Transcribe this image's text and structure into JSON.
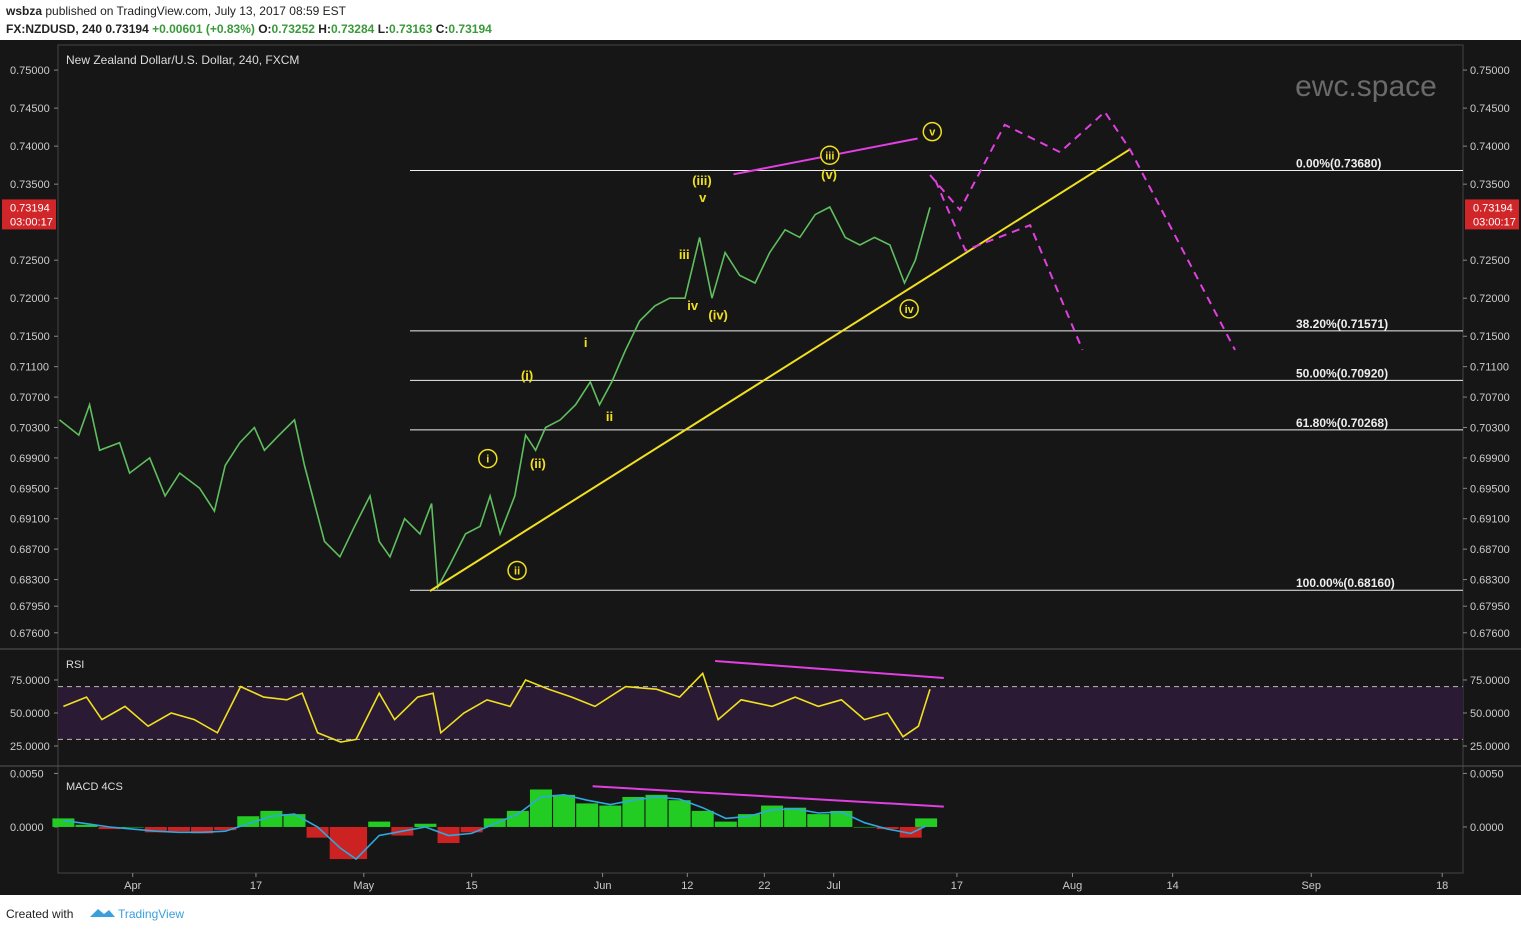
{
  "header": {
    "author": "wsbza",
    "published": "published on TradingView.com, July 13, 2017 08:59 EST",
    "symbol": "FX:NZDUSD, 240",
    "quote": "0.73194",
    "change": "+0.00601 (+0.83%)",
    "ohlc": [
      {
        "key": "O:",
        "value": "0.73252"
      },
      {
        "key": "H:",
        "value": "0.73284"
      },
      {
        "key": "L:",
        "value": "0.73163"
      },
      {
        "key": "C:",
        "value": "0.73194"
      }
    ]
  },
  "watermark": "ewc.space",
  "price_tag": {
    "price": "0.73194",
    "countdown": "03:00:17"
  },
  "footer": {
    "created": "Created with",
    "brand": "TradingView"
  },
  "chart_data": [
    {
      "type": "line",
      "title": "New Zealand Dollar/U.S. Dollar, 240, FXCM",
      "xlim": [
        81.3,
        263.7
      ],
      "ylim": [
        0.674,
        0.7533
      ],
      "yticks": [
        {
          "value": 0.75,
          "label": "0.75000"
        },
        {
          "value": 0.745,
          "label": "0.74500"
        },
        {
          "value": 0.74,
          "label": "0.74000"
        },
        {
          "value": 0.735,
          "label": "0.73500"
        },
        {
          "value": 0.725,
          "label": "0.72500"
        },
        {
          "value": 0.72,
          "label": "0.72000"
        },
        {
          "value": 0.715,
          "label": "0.71500"
        },
        {
          "value": 0.711,
          "label": "0.71100"
        },
        {
          "value": 0.707,
          "label": "0.70700"
        },
        {
          "value": 0.703,
          "label": "0.70300"
        },
        {
          "value": 0.699,
          "label": "0.69900"
        },
        {
          "value": 0.695,
          "label": "0.69500"
        },
        {
          "value": 0.691,
          "label": "0.69100"
        },
        {
          "value": 0.687,
          "label": "0.68700"
        },
        {
          "value": 0.683,
          "label": "0.68300"
        },
        {
          "value": 0.6795,
          "label": "0.67950"
        },
        {
          "value": 0.676,
          "label": "0.67600"
        }
      ],
      "x": [
        81.5,
        84,
        85.4,
        86.7,
        89.3,
        90.6,
        93.2,
        95.2,
        97.1,
        99.7,
        101.6,
        103,
        104.9,
        106.8,
        108.1,
        110,
        112,
        113.3,
        114.6,
        115.9,
        117.9,
        119.8,
        121.8,
        123,
        124.4,
        126.3,
        128.3,
        129.8,
        130.6,
        132.2,
        134.2,
        136.1,
        137.4,
        138.7,
        140.6,
        142,
        143.3,
        144.6,
        146.5,
        148.5,
        150.4,
        151.6,
        153.2,
        154.9,
        156.8,
        158.8,
        160.7,
        162.7,
        164.6,
        166.2,
        167.9,
        169.8,
        171.8,
        173.7,
        175.7,
        177.6,
        179.6,
        181.5,
        183.5,
        185.4,
        187.3,
        189.3,
        191.2,
        192.6,
        194.5
      ],
      "series": [
        {
          "color": "#5fbf5f",
          "values": [
            0.704,
            0.702,
            0.706,
            0.7,
            0.701,
            0.697,
            0.699,
            0.694,
            0.697,
            0.695,
            0.692,
            0.698,
            0.701,
            0.703,
            0.7,
            0.702,
            0.704,
            0.698,
            0.693,
            0.688,
            0.686,
            0.69,
            0.694,
            0.688,
            0.686,
            0.691,
            0.689,
            0.693,
            0.682,
            0.685,
            0.689,
            0.69,
            0.694,
            0.689,
            0.694,
            0.702,
            0.7,
            0.703,
            0.704,
            0.706,
            0.709,
            0.706,
            0.709,
            0.713,
            0.717,
            0.719,
            0.72,
            0.72,
            0.728,
            0.72,
            0.726,
            0.723,
            0.722,
            0.726,
            0.729,
            0.728,
            0.731,
            0.732,
            0.728,
            0.727,
            0.728,
            0.727,
            0.722,
            0.725,
            0.73194
          ]
        }
      ],
      "fib_start": 127,
      "fib_levels": [
        {
          "label": "0.00%(0.73680)",
          "value": 0.7368
        },
        {
          "label": "38.20%(0.71571)",
          "value": 0.71571
        },
        {
          "label": "50.00%(0.70920)",
          "value": 0.7092
        },
        {
          "label": "61.80%(0.70268)",
          "value": 0.70268
        },
        {
          "label": "100.00%(0.68160)",
          "value": 0.6816
        }
      ],
      "lines": [
        {
          "color": "#f0e020",
          "dashed": false,
          "points": [
            [
              129.6,
              0.6815
            ],
            [
              220.5,
              0.7396
            ]
          ]
        },
        {
          "color": "#e040e0",
          "dashed": false,
          "points": [
            [
              169,
              0.7363
            ],
            [
              192.9,
              0.741
            ]
          ]
        },
        {
          "color": "#e040e0",
          "dashed": true,
          "points": [
            [
              194.5,
              0.7362
            ],
            [
              198.4,
              0.7316
            ],
            [
              204.2,
              0.7428
            ],
            [
              211.4,
              0.7392
            ],
            [
              217.2,
              0.7445
            ],
            [
              220.5,
              0.7395
            ],
            [
              234.1,
              0.7132
            ]
          ]
        },
        {
          "color": "#e040e0",
          "dashed": true,
          "points": [
            [
              195.2,
              0.7355
            ],
            [
              199.1,
              0.7263
            ],
            [
              207.5,
              0.7296
            ],
            [
              214.3,
              0.7132
            ]
          ]
        }
      ],
      "annotations": [
        {
          "text": "(iii)",
          "x": 164.9,
          "y": 0.7354,
          "circled": false
        },
        {
          "text": "v",
          "x": 165,
          "y": 0.7332,
          "circled": false
        },
        {
          "text": "iii",
          "x": 162.6,
          "y": 0.7257,
          "circled": false
        },
        {
          "text": "iv",
          "x": 163.7,
          "y": 0.719,
          "circled": false
        },
        {
          "text": "(iv)",
          "x": 167,
          "y": 0.7177,
          "circled": false
        },
        {
          "text": "i",
          "x": 149.8,
          "y": 0.7141,
          "circled": false
        },
        {
          "text": "(i)",
          "x": 142.2,
          "y": 0.7098,
          "circled": false
        },
        {
          "text": "ii",
          "x": 152.9,
          "y": 0.7044,
          "circled": false
        },
        {
          "text": "(ii)",
          "x": 143.6,
          "y": 0.6982,
          "circled": false
        },
        {
          "text": "i",
          "x": 137.1,
          "y": 0.6989,
          "circled": true
        },
        {
          "text": "ii",
          "x": 140.9,
          "y": 0.6842,
          "circled": true
        },
        {
          "text": "iii",
          "x": 181.5,
          "y": 0.7388,
          "circled": true
        },
        {
          "text": "(v)",
          "x": 181.4,
          "y": 0.7362,
          "circled": false
        },
        {
          "text": "v",
          "x": 194.8,
          "y": 0.7419,
          "circled": true
        },
        {
          "text": "iv",
          "x": 191.8,
          "y": 0.7186,
          "circled": true
        }
      ]
    },
    {
      "type": "line",
      "title": "RSI",
      "xlim": [
        81.3,
        263.7
      ],
      "ylim": [
        10.6,
        97.7
      ],
      "bands": [
        30,
        70
      ],
      "yticks": [
        {
          "value": 75,
          "label": "75.0000"
        },
        {
          "value": 50,
          "label": "50.0000"
        },
        {
          "value": 25,
          "label": "25.0000"
        }
      ],
      "x": [
        82,
        85,
        87,
        90,
        93,
        96,
        99,
        102,
        105,
        108,
        111,
        113,
        115,
        118,
        120,
        123,
        125,
        128,
        130,
        131,
        134,
        137,
        140,
        142,
        145,
        148,
        151,
        155,
        159,
        162,
        165,
        167,
        170,
        174,
        177,
        180,
        183,
        186,
        189,
        191,
        193,
        194.5
      ],
      "series": [
        {
          "color": "#f0e020",
          "values": [
            55,
            62,
            45,
            55,
            40,
            50,
            45,
            35,
            70,
            62,
            60,
            65,
            35,
            28,
            30,
            65,
            45,
            62,
            65,
            35,
            50,
            60,
            55,
            75,
            68,
            62,
            55,
            70,
            68,
            62,
            80,
            45,
            60,
            55,
            62,
            55,
            60,
            45,
            50,
            32,
            40,
            68
          ]
        }
      ],
      "lines": [
        {
          "color": "#e040e0",
          "dashed": false,
          "points": [
            [
              166.6,
              89.4
            ],
            [
              196.3,
              76.5
            ]
          ]
        }
      ]
    },
    {
      "type": "bar",
      "title": "MACD 4CS",
      "xlim": [
        81.3,
        263.7
      ],
      "ylim": [
        -0.0043,
        0.0056
      ],
      "pos_color": "#22cc22",
      "neg_color": "#cc2222",
      "yticks": [
        {
          "value": 0.005,
          "label": "0.0050"
        },
        {
          "value": 0,
          "label": "0.0000"
        }
      ],
      "xticks": [
        {
          "value": 91,
          "label": "Apr"
        },
        {
          "value": 107,
          "label": "17"
        },
        {
          "value": 121,
          "label": "May"
        },
        {
          "value": 135,
          "label": "15"
        },
        {
          "value": 152,
          "label": "Jun"
        },
        {
          "value": 163,
          "label": "12"
        },
        {
          "value": 173,
          "label": "22"
        },
        {
          "value": 182,
          "label": "Jul"
        },
        {
          "value": 198,
          "label": "17"
        },
        {
          "value": 213,
          "label": "Aug"
        },
        {
          "value": 226,
          "label": "14"
        },
        {
          "value": 244,
          "label": "Sep"
        },
        {
          "value": 261,
          "label": "18"
        }
      ],
      "x": [
        82,
        85,
        88,
        91,
        94,
        97,
        100,
        103,
        106,
        109,
        112,
        115,
        118,
        120,
        123,
        126,
        129,
        132,
        135,
        138,
        141,
        144,
        147,
        150,
        153,
        156,
        159,
        162,
        165,
        168,
        171,
        174,
        177,
        180,
        183,
        186,
        189,
        192,
        194
      ],
      "values": [
        0.0008,
        0.0002,
        -0.0002,
        0,
        -0.0005,
        -0.0004,
        -0.0006,
        -0.0003,
        0.001,
        0.0015,
        0.0012,
        -0.001,
        -0.003,
        -0.003,
        0.0005,
        -0.0008,
        0.0003,
        -0.0015,
        -0.0005,
        0.0008,
        0.0015,
        0.0035,
        0.003,
        0.0022,
        0.002,
        0.0028,
        0.003,
        0.0025,
        0.0015,
        0.0005,
        0.0012,
        0.002,
        0.0018,
        0.0012,
        0.0015,
        0,
        -0.0002,
        -0.001,
        0.0008
      ],
      "series": [
        {
          "color": "#2ea9df",
          "values": [
            0.0006,
            0.0003,
            0,
            -0.0002,
            -0.0004,
            -0.0005,
            -0.0005,
            -0.0004,
            0.0003,
            0.001,
            0.0012,
            0,
            -0.002,
            -0.003,
            -0.0008,
            -0.0004,
            0,
            -0.0008,
            -0.0006,
            0.0003,
            0.0012,
            0.0028,
            0.003,
            0.0025,
            0.0021,
            0.0025,
            0.0028,
            0.0026,
            0.0018,
            0.0008,
            0.001,
            0.0016,
            0.0017,
            0.0013,
            0.0014,
            0.0004,
            -0.0002,
            -0.0006,
            0.0001
          ]
        }
      ],
      "lines": [
        {
          "color": "#e040e0",
          "dashed": false,
          "points": [
            [
              150.7,
              0.0038
            ],
            [
              196.3,
              0.0019
            ]
          ]
        }
      ]
    }
  ]
}
